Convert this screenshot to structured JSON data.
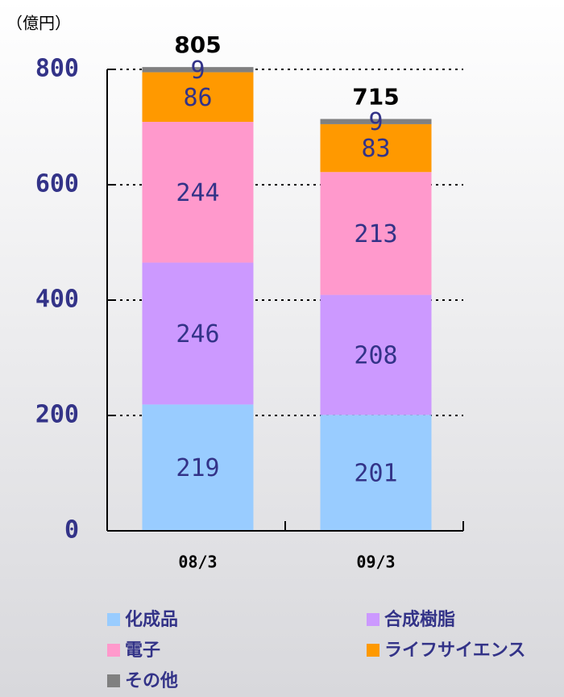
{
  "chart_data": {
    "type": "stacked_bar",
    "y_label": "（億円）",
    "categories": [
      "08/3",
      "09/3"
    ],
    "series": [
      {
        "name": "化成品",
        "color": "#99ccff",
        "values": [
          219,
          201
        ]
      },
      {
        "name": "合成樹脂",
        "color": "#cc99ff",
        "values": [
          246,
          208
        ]
      },
      {
        "name": "電子",
        "color": "#ff99cc",
        "values": [
          244,
          213
        ]
      },
      {
        "name": "ライフサイエンス",
        "color": "#ff9900",
        "values": [
          86,
          83
        ]
      },
      {
        "name": "その他",
        "color": "#808080",
        "values": [
          9,
          9
        ]
      }
    ],
    "totals": [
      805,
      715
    ],
    "ylim": [
      0,
      800
    ],
    "yticks": [
      0,
      200,
      400,
      600,
      800
    ],
    "grid": true
  }
}
